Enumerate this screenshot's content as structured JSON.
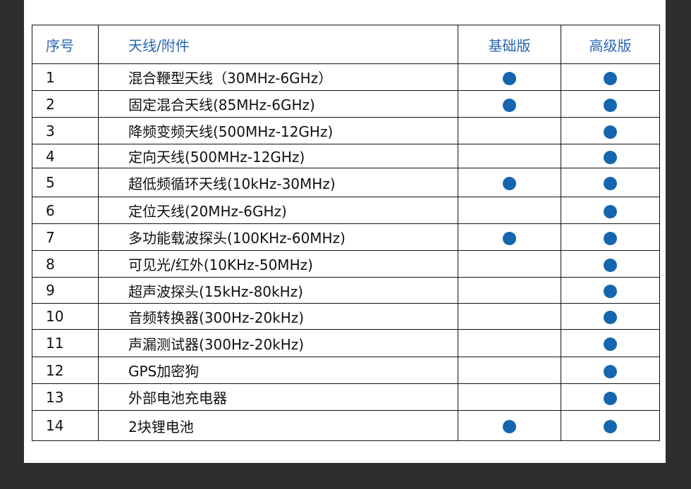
{
  "table": {
    "headers": [
      "序号",
      "天线/附件",
      "基础版",
      "高级版"
    ],
    "rows": [
      {
        "no": "1",
        "name": "混合鞭型天线（30MHz-6GHz）",
        "basic": true,
        "advanced": true
      },
      {
        "no": "2",
        "name": "固定混合天线(85MHz-6GHz)",
        "basic": true,
        "advanced": true
      },
      {
        "no": "3",
        "name": "降频变频天线(500MHz-12GHz)",
        "basic": false,
        "advanced": true
      },
      {
        "no": "4",
        "name": "定向天线(500MHz-12GHz)",
        "basic": false,
        "advanced": true
      },
      {
        "no": "5",
        "name": "超低频循环天线(10kHz-30MHz)",
        "basic": true,
        "advanced": true
      },
      {
        "no": "6",
        "name": "定位天线(20MHz-6GHz)",
        "basic": false,
        "advanced": true
      },
      {
        "no": "7",
        "name": "多功能载波探头(100KHz-60MHz)",
        "basic": true,
        "advanced": true
      },
      {
        "no": "8",
        "name": "可见光/红外(10KHz-50MHz)",
        "basic": false,
        "advanced": true
      },
      {
        "no": "9",
        "name": "超声波探头(15kHz-80kHz)",
        "basic": false,
        "advanced": true
      },
      {
        "no": "10",
        "name": "音频转换器(300Hz-20kHz)",
        "basic": false,
        "advanced": true
      },
      {
        "no": "11",
        "name": "声漏测试器(300Hz-20kHz)",
        "basic": false,
        "advanced": true
      },
      {
        "no": "12",
        "name": "GPS加密狗",
        "basic": false,
        "advanced": true
      },
      {
        "no": "13",
        "name": "外部电池充电器",
        "basic": false,
        "advanced": true
      },
      {
        "no": "14",
        "name": "2块锂电池",
        "basic": true,
        "advanced": true
      }
    ]
  },
  "colors": {
    "header_text": "#2a66b0",
    "dot": "#1565b0",
    "background": "#2e2e2e"
  }
}
